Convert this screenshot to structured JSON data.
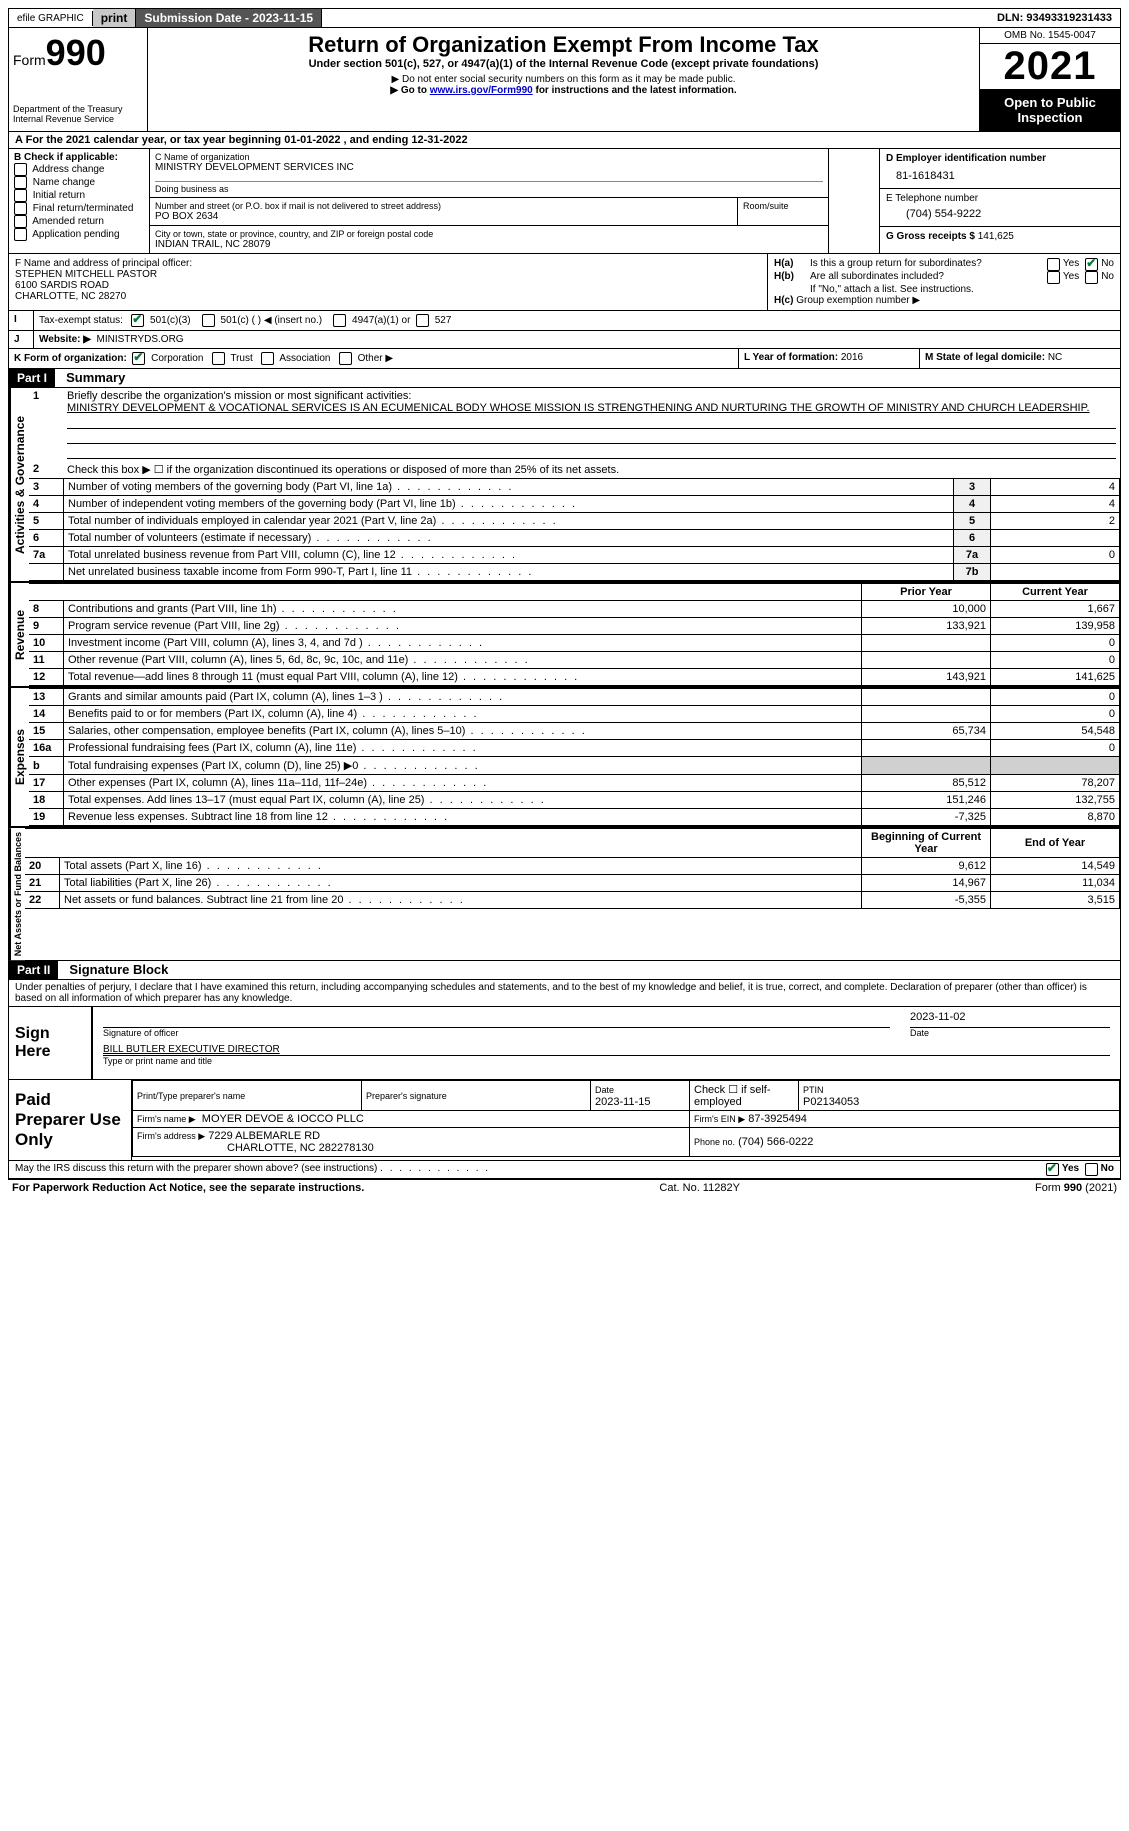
{
  "topbar": {
    "efile_label": "efile GRAPHIC",
    "print_btn": "print",
    "submission_label": "Submission Date - 2023-11-15",
    "dln_label": "DLN: 93493319231433"
  },
  "header": {
    "form_word": "Form",
    "form_num": "990",
    "dept": "Department of the Treasury",
    "irs": "Internal Revenue Service",
    "title": "Return of Organization Exempt From Income Tax",
    "subtitle": "Under section 501(c), 527, or 4947(a)(1) of the Internal Revenue Code (except private foundations)",
    "note1": "▶ Do not enter social security numbers on this form as it may be made public.",
    "note2_pre": "▶ Go to ",
    "note2_link": "www.irs.gov/Form990",
    "note2_post": " for instructions and the latest information.",
    "omb": "OMB No. 1545-0047",
    "year": "2021",
    "open": "Open to Public Inspection"
  },
  "period": {
    "text_pre": "For the 2021 calendar year, or tax year beginning ",
    "begin": "01-01-2022",
    "mid": " , and ending ",
    "end": "12-31-2022"
  },
  "sectionB": {
    "label": "B Check if applicable:",
    "items": [
      "Address change",
      "Name change",
      "Initial return",
      "Final return/terminated",
      "Amended return",
      "Application pending"
    ]
  },
  "sectionC": {
    "name_label": "C Name of organization",
    "org_name": "MINISTRY DEVELOPMENT SERVICES INC",
    "dba_label": "Doing business as",
    "addr_label": "Number and street (or P.O. box if mail is not delivered to street address)",
    "room_label": "Room/suite",
    "addr": "PO BOX 2634",
    "city_label": "City or town, state or province, country, and ZIP or foreign postal code",
    "city": "INDIAN TRAIL, NC  28079"
  },
  "sectionD": {
    "label": "D Employer identification number",
    "ein": "81-1618431"
  },
  "sectionE": {
    "label": "E Telephone number",
    "phone": "(704) 554-9222"
  },
  "sectionG": {
    "label": "G Gross receipts $",
    "amount": "141,625"
  },
  "sectionF": {
    "label": "F  Name and address of principal officer:",
    "line1": "STEPHEN MITCHELL PASTOR",
    "line2": "6100 SARDIS ROAD",
    "line3": "CHARLOTTE, NC  28270"
  },
  "sectionH": {
    "a": "Is this a group return for subordinates?",
    "b": "Are all subordinates included?",
    "b_note": "If \"No,\" attach a list. See instructions.",
    "c": "Group exemption number ▶",
    "ha": "H(a)",
    "hb": "H(b)",
    "hc": "H(c)",
    "yes": "Yes",
    "no": "No"
  },
  "sectionI": {
    "label": "Tax-exempt status:",
    "opt1": "501(c)(3)",
    "opt2": "501(c) (  ) ◀ (insert no.)",
    "opt3": "4947(a)(1) or",
    "opt4": "527"
  },
  "sectionJ": {
    "label": "Website: ▶",
    "value": "MINISTRYDS.ORG"
  },
  "sectionK": {
    "label": "K Form of organization:",
    "opts": [
      "Corporation",
      "Trust",
      "Association",
      "Other ▶"
    ]
  },
  "sectionL": {
    "label": "L Year of formation:",
    "value": "2016"
  },
  "sectionM": {
    "label": "M State of legal domicile:",
    "value": "NC"
  },
  "part1": {
    "header": "Part I",
    "title": "Summary",
    "line1_label": "Briefly describe the organization's mission or most significant activities:",
    "mission": "MINISTRY DEVELOPMENT & VOCATIONAL SERVICES IS AN ECUMENICAL BODY WHOSE MISSION IS STRENGTHENING AND NURTURING THE GROWTH OF MINISTRY AND CHURCH LEADERSHIP.",
    "line2": "Check this box ▶ ☐ if the organization discontinued its operations or disposed of more than 25% of its net assets.",
    "vert_activities": "Activities & Governance",
    "vert_revenue": "Revenue",
    "vert_expenses": "Expenses",
    "vert_net": "Net Assets or Fund Balances",
    "prior_year": "Prior Year",
    "current_year": "Current Year",
    "begin_year": "Beginning of Current Year",
    "end_year": "End of Year",
    "rows_gov": [
      {
        "n": "3",
        "t": "Number of voting members of the governing body (Part VI, line 1a)",
        "box": "3",
        "v": "4"
      },
      {
        "n": "4",
        "t": "Number of independent voting members of the governing body (Part VI, line 1b)",
        "box": "4",
        "v": "4"
      },
      {
        "n": "5",
        "t": "Total number of individuals employed in calendar year 2021 (Part V, line 2a)",
        "box": "5",
        "v": "2"
      },
      {
        "n": "6",
        "t": "Total number of volunteers (estimate if necessary)",
        "box": "6",
        "v": ""
      },
      {
        "n": "7a",
        "t": "Total unrelated business revenue from Part VIII, column (C), line 12",
        "box": "7a",
        "v": "0"
      },
      {
        "n": "",
        "t": "Net unrelated business taxable income from Form 990-T, Part I, line 11",
        "box": "7b",
        "v": ""
      }
    ],
    "rows_rev": [
      {
        "n": "8",
        "t": "Contributions and grants (Part VIII, line 1h)",
        "p": "10,000",
        "c": "1,667"
      },
      {
        "n": "9",
        "t": "Program service revenue (Part VIII, line 2g)",
        "p": "133,921",
        "c": "139,958"
      },
      {
        "n": "10",
        "t": "Investment income (Part VIII, column (A), lines 3, 4, and 7d )",
        "p": "",
        "c": "0"
      },
      {
        "n": "11",
        "t": "Other revenue (Part VIII, column (A), lines 5, 6d, 8c, 9c, 10c, and 11e)",
        "p": "",
        "c": "0"
      },
      {
        "n": "12",
        "t": "Total revenue—add lines 8 through 11 (must equal Part VIII, column (A), line 12)",
        "p": "143,921",
        "c": "141,625"
      }
    ],
    "rows_exp": [
      {
        "n": "13",
        "t": "Grants and similar amounts paid (Part IX, column (A), lines 1–3 )",
        "p": "",
        "c": "0"
      },
      {
        "n": "14",
        "t": "Benefits paid to or for members (Part IX, column (A), line 4)",
        "p": "",
        "c": "0"
      },
      {
        "n": "15",
        "t": "Salaries, other compensation, employee benefits (Part IX, column (A), lines 5–10)",
        "p": "65,734",
        "c": "54,548"
      },
      {
        "n": "16a",
        "t": "Professional fundraising fees (Part IX, column (A), line 11e)",
        "p": "",
        "c": "0"
      },
      {
        "n": "b",
        "t": "Total fundraising expenses (Part IX, column (D), line 25) ▶0",
        "p": "SHADE",
        "c": "SHADE"
      },
      {
        "n": "17",
        "t": "Other expenses (Part IX, column (A), lines 11a–11d, 11f–24e)",
        "p": "85,512",
        "c": "78,207"
      },
      {
        "n": "18",
        "t": "Total expenses. Add lines 13–17 (must equal Part IX, column (A), line 25)",
        "p": "151,246",
        "c": "132,755"
      },
      {
        "n": "19",
        "t": "Revenue less expenses. Subtract line 18 from line 12",
        "p": "-7,325",
        "c": "8,870"
      }
    ],
    "rows_net": [
      {
        "n": "20",
        "t": "Total assets (Part X, line 16)",
        "p": "9,612",
        "c": "14,549"
      },
      {
        "n": "21",
        "t": "Total liabilities (Part X, line 26)",
        "p": "14,967",
        "c": "11,034"
      },
      {
        "n": "22",
        "t": "Net assets or fund balances. Subtract line 21 from line 20",
        "p": "-5,355",
        "c": "3,515"
      }
    ]
  },
  "part2": {
    "header": "Part II",
    "title": "Signature Block",
    "penalty": "Under penalties of perjury, I declare that I have examined this return, including accompanying schedules and statements, and to the best of my knowledge and belief, it is true, correct, and complete. Declaration of preparer (other than officer) is based on all information of which preparer has any knowledge.",
    "sign_here": "Sign Here",
    "sig_officer": "Signature of officer",
    "sig_date": "2023-11-02",
    "date_label": "Date",
    "officer_name": "BILL BUTLER  EXECUTIVE DIRECTOR",
    "type_name": "Type or print name and title",
    "paid": "Paid Preparer Use Only",
    "prep_name_label": "Print/Type preparer's name",
    "prep_sig_label": "Preparer's signature",
    "prep_date_label": "Date",
    "prep_date": "2023-11-15",
    "check_if": "Check ☐ if self-employed",
    "ptin_label": "PTIN",
    "ptin": "P02134053",
    "firm_name_label": "Firm's name    ▶",
    "firm_name": "MOYER DEVOE & IOCCO PLLC",
    "firm_ein_label": "Firm's EIN ▶",
    "firm_ein": "87-3925494",
    "firm_addr_label": "Firm's address ▶",
    "firm_addr1": "7229 ALBEMARLE RD",
    "firm_addr2": "CHARLOTTE, NC  282278130",
    "firm_phone_label": "Phone no.",
    "firm_phone": "(704) 566-0222",
    "discuss": "May the IRS discuss this return with the preparer shown above? (see instructions)",
    "yes": "Yes",
    "no": "No"
  },
  "footer": {
    "left": "For Paperwork Reduction Act Notice, see the separate instructions.",
    "mid": "Cat. No. 11282Y",
    "right": "Form 990 (2021)"
  },
  "colors": {
    "link": "#0000cc",
    "check": "#0a7a3a",
    "shade": "#d0d0d0"
  }
}
